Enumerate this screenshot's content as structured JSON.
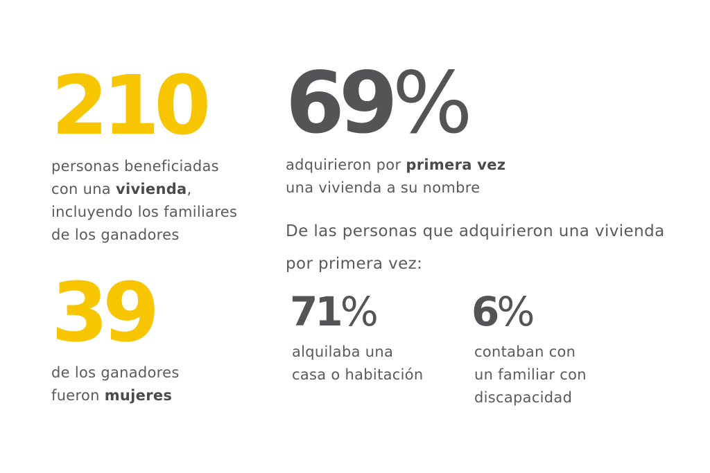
{
  "colors": {
    "accent_yellow": "#f7c600",
    "dark_gray": "#545456",
    "text_gray": "#5a5a5c"
  },
  "stat_210": {
    "number": "210",
    "line1": "personas beneficiadas",
    "line2_pre": "con una ",
    "line2_bold": "vivienda",
    "line2_post": ",",
    "line3": "incluyendo los familiares",
    "line4": "de los ganadores"
  },
  "stat_39": {
    "number": "39",
    "line1": "de los ganadores",
    "line2_pre": "fueron ",
    "line2_bold": "mujeres"
  },
  "stat_69": {
    "number": "69",
    "percent": "%",
    "line1_pre": "adquirieron por ",
    "line1_bold": "primera vez",
    "line2": "una vivienda a su nombre"
  },
  "subsection": {
    "line1": "De las personas que adquirieron una vivienda",
    "line2": "por primera vez:"
  },
  "stat_71": {
    "number": "71",
    "percent": "%",
    "line1": "alquilaba una",
    "line2": "casa o habitación"
  },
  "stat_6": {
    "number": "6",
    "percent": "%",
    "line1": "contaban con",
    "line2": "un familiar con",
    "line3": "discapacidad"
  }
}
